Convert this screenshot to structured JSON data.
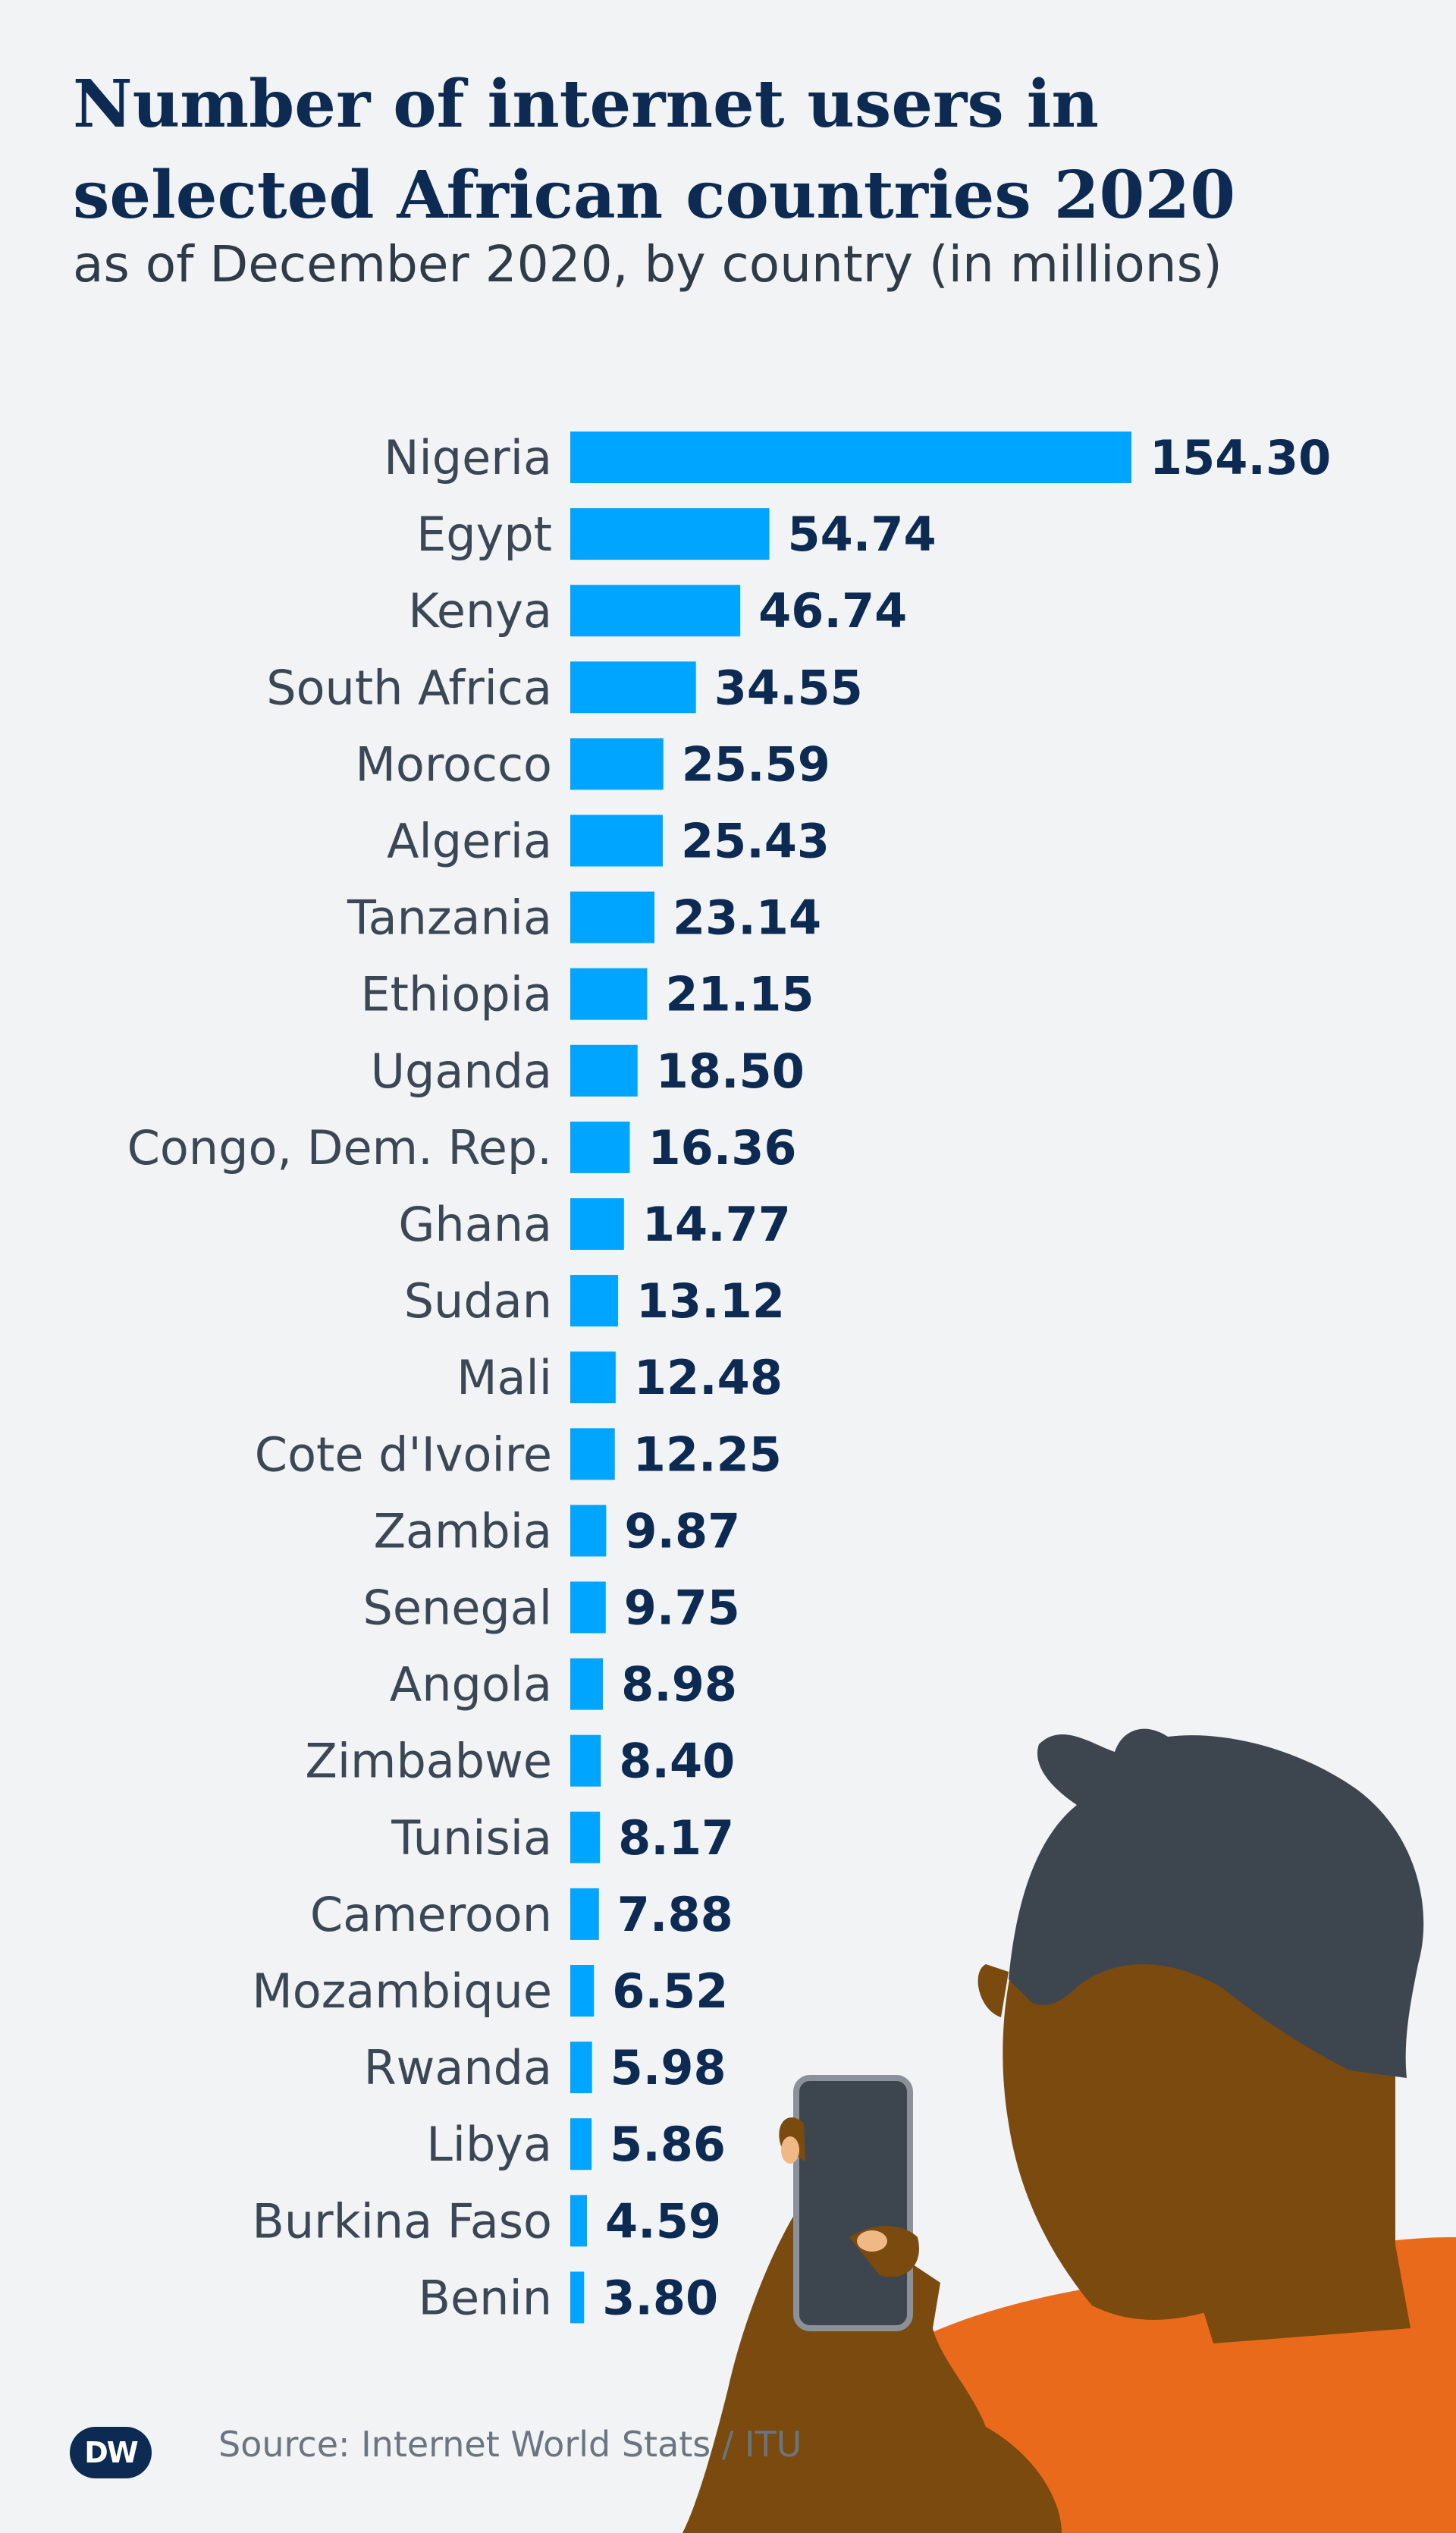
{
  "header": {
    "title": "Number of internet users in selected African countries 2020",
    "subtitle": "as of December 2020, by country (in millions)"
  },
  "footer": {
    "logo_text": "DW",
    "source": "Source: Internet World Stats / ITU"
  },
  "colors": {
    "bar": "#00a5ff",
    "title": "#0c2a52",
    "background": "#f1f3f5",
    "skin": "#7a4a0e",
    "hair": "#3d454f",
    "shirt": "#e86a1a"
  },
  "illustration": {
    "icon": "person-with-smartphone-icon"
  },
  "chart_data": {
    "type": "bar",
    "orientation": "horizontal",
    "title": "Number of internet users in selected African countries 2020",
    "subtitle": "as of December 2020, by country (in millions)",
    "categories": [
      "Nigeria",
      "Egypt",
      "Kenya",
      "South Africa",
      "Morocco",
      "Algeria",
      "Tanzania",
      "Ethiopia",
      "Uganda",
      "Congo, Dem. Rep.",
      "Ghana",
      "Sudan",
      "Mali",
      "Cote d'Ivoire",
      "Zambia",
      "Senegal",
      "Angola",
      "Zimbabwe",
      "Tunisia",
      "Cameroon",
      "Mozambique",
      "Rwanda",
      "Libya",
      "Burkina Faso",
      "Benin"
    ],
    "values": [
      154.3,
      54.74,
      46.74,
      34.55,
      25.59,
      25.43,
      23.14,
      21.15,
      18.5,
      16.36,
      14.77,
      13.12,
      12.48,
      12.25,
      9.87,
      9.75,
      8.98,
      8.4,
      8.17,
      7.88,
      6.52,
      5.98,
      5.86,
      4.59,
      3.8
    ],
    "value_labels": [
      "154.30",
      "54.74",
      "46.74",
      "34.55",
      "25.59",
      "25.43",
      "23.14",
      "21.15",
      "18.50",
      "16.36",
      "14.77",
      "13.12",
      "12.48",
      "12.25",
      "9.87",
      "9.75",
      "8.98",
      "8.40",
      "8.17",
      "7.88",
      "6.52",
      "5.98",
      "5.86",
      "4.59",
      "3.80"
    ],
    "xlabel": "",
    "ylabel": "",
    "xlim": [
      0,
      154.3
    ],
    "grid": false,
    "legend": "none"
  }
}
